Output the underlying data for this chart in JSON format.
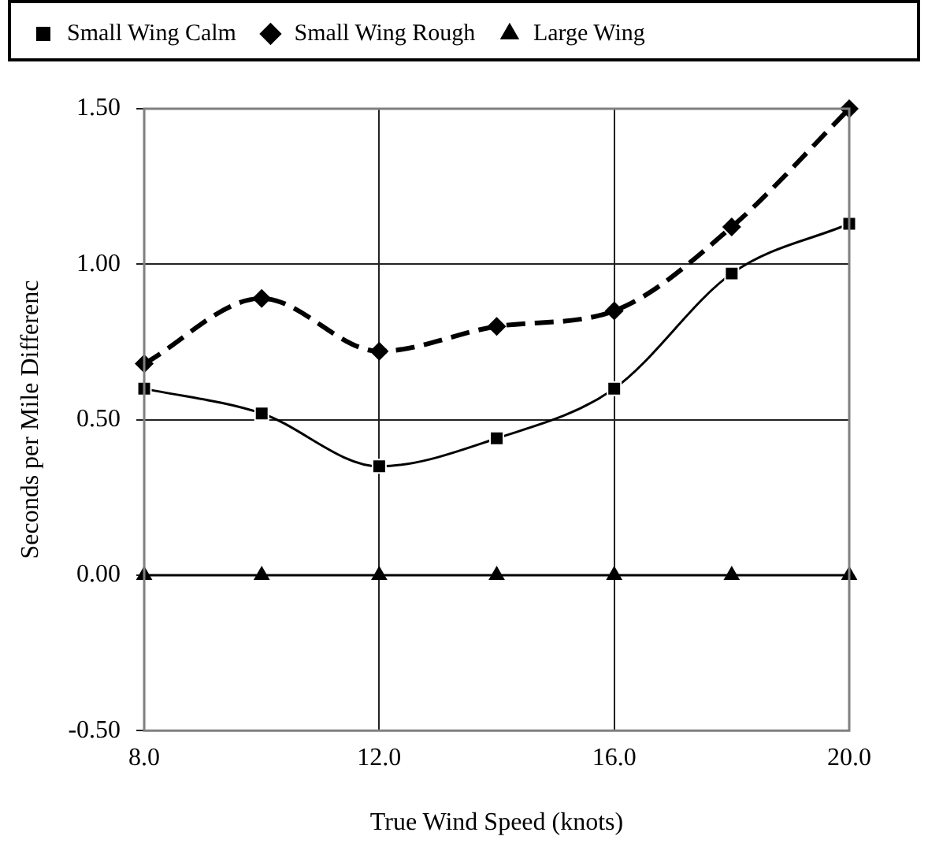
{
  "chart_data": {
    "type": "line",
    "xlabel": "True Wind Speed (knots)",
    "ylabel": "Seconds per Mile Differenc",
    "x": [
      8,
      10,
      12,
      14,
      16,
      18,
      20
    ],
    "series": [
      {
        "name": "Small Wing Calm",
        "color": "#000000",
        "marker": "square",
        "line_style": "solid",
        "values": [
          0.6,
          0.52,
          0.35,
          0.44,
          0.6,
          0.97,
          1.13
        ]
      },
      {
        "name": "Small Wing Rough",
        "color": "#000000",
        "marker": "diamond",
        "line_style": "dashed",
        "values": [
          0.68,
          0.89,
          0.72,
          0.8,
          0.85,
          1.12,
          1.5
        ]
      },
      {
        "name": "Large Wing",
        "color": "#000000",
        "marker": "triangle",
        "line_style": "solid",
        "values": [
          0,
          0,
          0,
          0,
          0,
          0,
          0
        ]
      }
    ],
    "xlim": [
      8,
      20
    ],
    "xticks": [
      {
        "value": 8,
        "label": "8.0"
      },
      {
        "value": 12,
        "label": "12.0"
      },
      {
        "value": 16,
        "label": "16.0"
      },
      {
        "value": 20,
        "label": "20.0"
      }
    ],
    "ylim": [
      -0.5,
      1.5
    ],
    "yticks": [
      {
        "value": -0.5,
        "label": "-0.50"
      },
      {
        "value": 0,
        "label": "0.00"
      },
      {
        "value": 0.5,
        "label": "0.50"
      },
      {
        "value": 1,
        "label": "1.00"
      },
      {
        "value": 1.5,
        "label": "1.50"
      }
    ],
    "grid": true,
    "legend": "top"
  }
}
